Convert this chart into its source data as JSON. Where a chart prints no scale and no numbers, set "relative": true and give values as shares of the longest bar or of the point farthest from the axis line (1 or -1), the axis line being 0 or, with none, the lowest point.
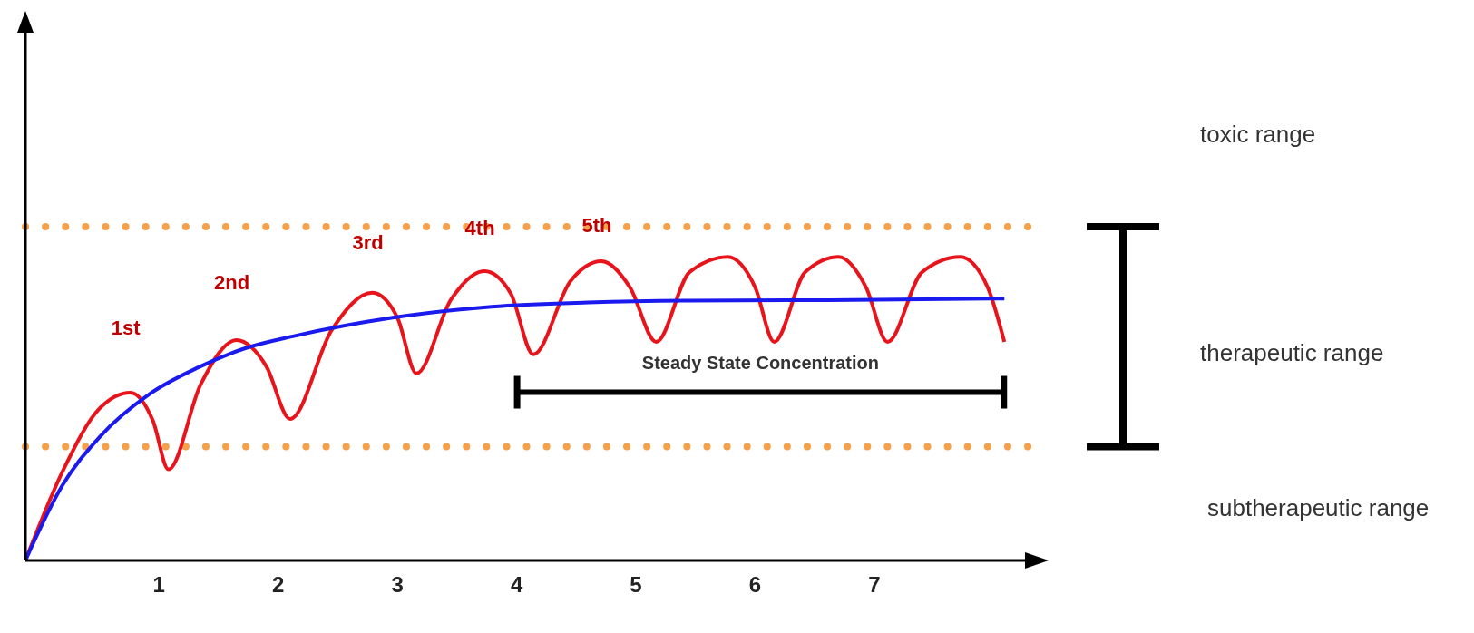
{
  "chart_data": {
    "type": "line",
    "relative": true,
    "xlim": [
      -0.12,
      8.4
    ],
    "xticks": [
      1,
      2,
      3,
      4,
      5,
      6,
      7
    ],
    "series": [
      {
        "color": "#e8141c",
        "x": [
          -0.12,
          0.2,
          0.5,
          0.76,
          0.95,
          1.08,
          1.35,
          1.65,
          1.9,
          2.1,
          2.45,
          2.79,
          3.0,
          3.16,
          3.45,
          3.73,
          3.95,
          4.14,
          4.45,
          4.71,
          4.95,
          5.17,
          5.45,
          5.77,
          6.0,
          6.16,
          6.42,
          6.7,
          6.93,
          7.11,
          7.4,
          7.72,
          7.95,
          8.09
        ],
        "values": [
          0,
          0.3,
          0.5,
          0.553,
          0.46,
          0.3,
          0.58,
          0.726,
          0.64,
          0.466,
          0.76,
          0.882,
          0.8,
          0.616,
          0.86,
          0.953,
          0.88,
          0.679,
          0.92,
          0.986,
          0.9,
          0.72,
          0.95,
          1,
          0.9,
          0.72,
          0.95,
          1,
          0.9,
          0.72,
          0.95,
          1,
          0.9,
          0.72
        ]
      },
      {
        "color": "#1a1aee",
        "x": [
          -0.12,
          0.19,
          0.51,
          0.92,
          1.33,
          1.73,
          2.14,
          2.96,
          3.79,
          4.6,
          5.4,
          6.62,
          8.09
        ],
        "values": [
          0,
          0.247,
          0.41,
          0.548,
          0.636,
          0.7,
          0.74,
          0.8,
          0.836,
          0.85,
          0.856,
          0.858,
          0.863
        ]
      }
    ],
    "ref_lines": [
      {
        "axis": "y",
        "value": 1.1,
        "color": "#f5a04a",
        "line_style": "dotted"
      },
      {
        "axis": "y",
        "value": 0.375,
        "color": "#f5a04a",
        "line_style": "dotted"
      }
    ],
    "annotations": [
      "toxic range",
      "therapeutic range",
      "subtherapeutic range",
      "Steady State Concentration",
      "1st",
      "2nd",
      "3rd",
      "4th",
      "5th"
    ],
    "grid": false,
    "legend": false,
    "marker": "none",
    "line_style": "solid"
  }
}
